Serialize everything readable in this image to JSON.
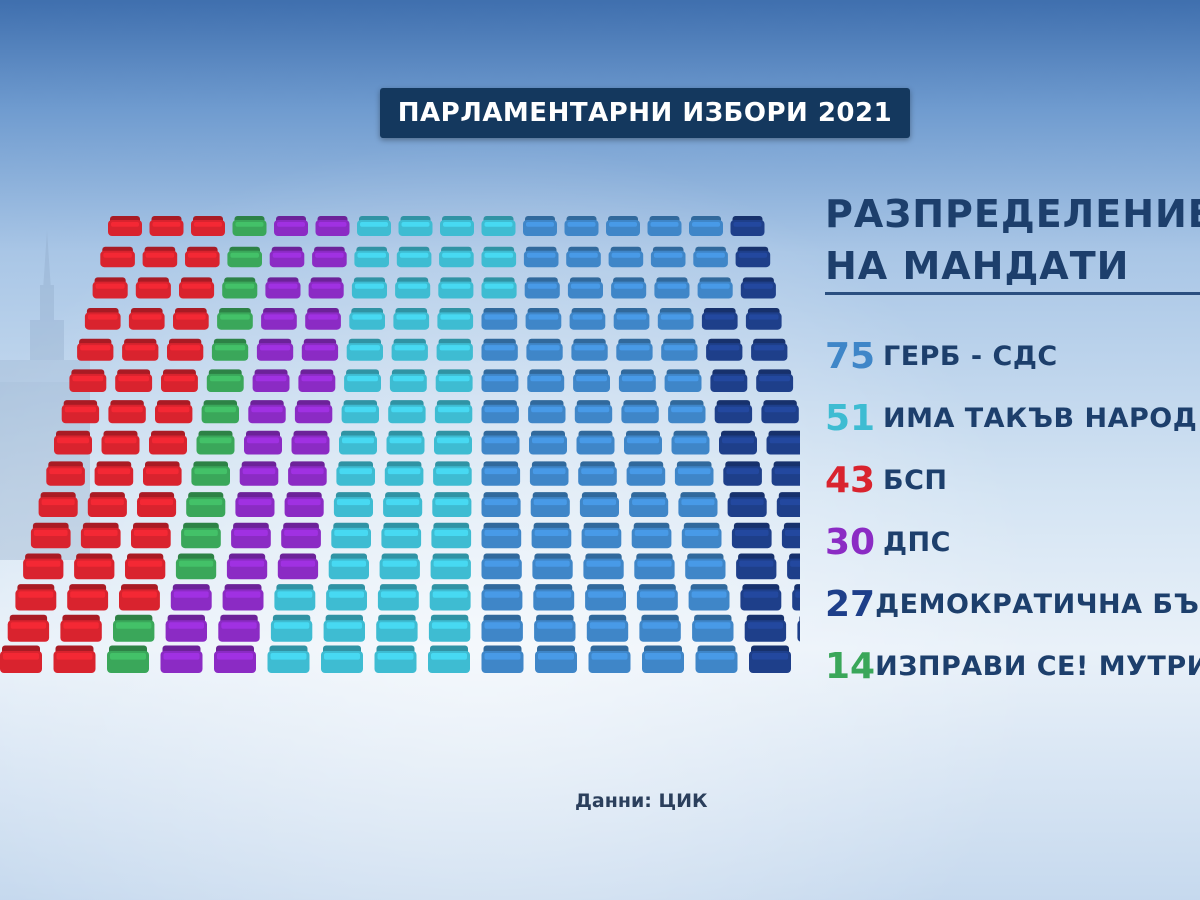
{
  "title": "ПАРЛАМЕНТАРНИ ИЗБОРИ 2021",
  "legend_heading": [
    "РАЗПРЕДЕЛЕНИЕ",
    "НА МАНДАТИ"
  ],
  "source": "Данни: ЦИК",
  "chart_data": {
    "type": "seat-grid",
    "total_seats": 240,
    "series": [
      {
        "name": "ГЕРБ - СДС",
        "value": 75,
        "color": "#3f86c8"
      },
      {
        "name": "ИМА ТАКЪВ НАРОД",
        "value": 51,
        "color": "#3ebcd2"
      },
      {
        "name": "БСП",
        "value": 43,
        "color": "#d9232e"
      },
      {
        "name": "ДПС",
        "value": 30,
        "color": "#8b2bc4"
      },
      {
        "name": "ДЕМОКРАТИЧНА БЪЛГАРИЯ",
        "value": 27,
        "color": "#1e3f8a"
      },
      {
        "name": "ИЗПРАВИ СЕ! МУТРИ ВЪН!",
        "value": 14,
        "color": "#3aa75a"
      }
    ]
  }
}
